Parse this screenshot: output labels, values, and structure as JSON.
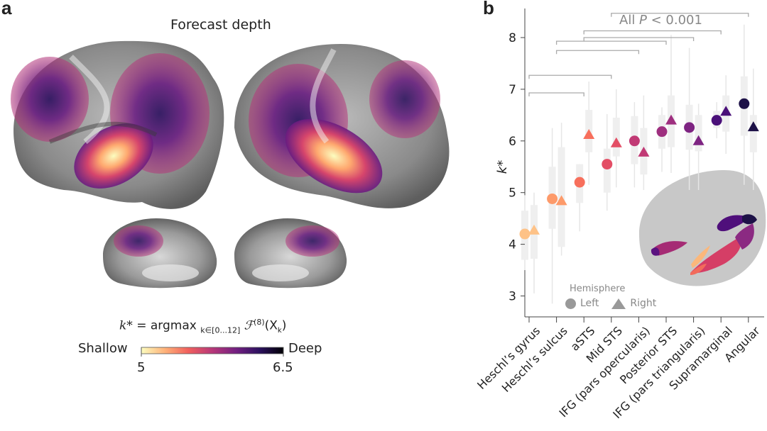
{
  "panel_a": {
    "label": "a",
    "title": "Forecast depth",
    "formula": {
      "lhs": "k*",
      "eq": " = argmax ",
      "subscript": "k∈[0...12]",
      "func": "ℱ",
      "superscript": "(8)",
      "arg": "(X",
      "arg_sub": "k",
      "close": ")"
    },
    "colorbar": {
      "left_label": "Shallow",
      "right_label": "Deep",
      "min_tick": "5",
      "max_tick": "6.5",
      "colormap": [
        "#fcfdbf",
        "#feb078",
        "#f1605d",
        "#b73779",
        "#721f81",
        "#2c115f",
        "#000004"
      ]
    },
    "views": [
      "left-lateral",
      "right-lateral",
      "left-medial",
      "right-medial"
    ]
  },
  "chart_data": {
    "type": "scatter",
    "panel_label": "b",
    "title": "",
    "xlabel": "",
    "ylabel": "k*",
    "ylim": [
      2.6,
      8.5
    ],
    "yticks": [
      3,
      4,
      5,
      6,
      7,
      8
    ],
    "categories": [
      "Heschl’s gyrus",
      "Heschl’s sulcus",
      "aSTS",
      "Mid STS",
      "IFG (pars opercularis)",
      "Posterior STS",
      "IFG (pars triangularis)",
      "Supramarginal",
      "Angular"
    ],
    "colors": [
      "#fec287",
      "#fd9a6a",
      "#f76f5c",
      "#e34e65",
      "#c13a75",
      "#9e2f7f",
      "#7e2482",
      "#4a1079",
      "#1d1147"
    ],
    "series": [
      {
        "name": "Left",
        "marker": "circle",
        "values": [
          4.2,
          4.88,
          5.2,
          5.55,
          6.0,
          6.18,
          6.26,
          6.4,
          6.72
        ],
        "box": [
          {
            "q1": 3.7,
            "q3": 4.65,
            "lo": 3.5,
            "hi": 4.95
          },
          {
            "q1": 4.3,
            "q3": 5.5,
            "lo": 2.85,
            "hi": 6.25
          },
          {
            "q1": 4.8,
            "q3": 5.55,
            "lo": 4.25,
            "hi": 5.55
          },
          {
            "q1": 5.0,
            "q3": 5.85,
            "lo": 4.65,
            "hi": 6.52
          },
          {
            "q1": 5.55,
            "q3": 6.48,
            "lo": 5.1,
            "hi": 6.75
          },
          {
            "q1": 5.85,
            "q3": 6.5,
            "lo": 5.4,
            "hi": 6.65
          },
          {
            "q1": 5.83,
            "q3": 6.7,
            "lo": 5.05,
            "hi": 7.8
          },
          {
            "q1": 6.25,
            "q3": 6.58,
            "lo": 6.05,
            "hi": 6.75
          },
          {
            "q1": 6.1,
            "q3": 7.25,
            "lo": 5.15,
            "hi": 8.25
          }
        ]
      },
      {
        "name": "Right",
        "marker": "triangle",
        "values": [
          4.27,
          4.84,
          6.12,
          5.96,
          5.78,
          6.4,
          6.0,
          6.57,
          6.27
        ],
        "box": [
          {
            "q1": 3.72,
            "q3": 4.76,
            "lo": 3.05,
            "hi": 5.0
          },
          {
            "q1": 3.95,
            "q3": 5.88,
            "lo": 3.78,
            "hi": 6.35
          },
          {
            "q1": 5.78,
            "q3": 6.6,
            "lo": 5.15,
            "hi": 7.15
          },
          {
            "q1": 5.7,
            "q3": 6.45,
            "lo": 5.1,
            "hi": 7.0
          },
          {
            "q1": 5.35,
            "q3": 6.25,
            "lo": 5.05,
            "hi": 6.88
          },
          {
            "q1": 5.88,
            "q3": 6.88,
            "lo": 5.38,
            "hi": 8.05
          },
          {
            "q1": 5.8,
            "q3": 6.5,
            "lo": 5.05,
            "hi": 6.72
          },
          {
            "q1": 6.18,
            "q3": 6.88,
            "lo": 5.75,
            "hi": 7.27
          },
          {
            "q1": 5.78,
            "q3": 6.5,
            "lo": 5.05,
            "hi": 7.4
          }
        ]
      }
    ],
    "significance": {
      "label_prefix": "All ",
      "label_italic": "P",
      "label_suffix": " < 0.001",
      "brackets": [
        {
          "from": 0,
          "to": 2,
          "level": 6.93
        },
        {
          "from": 0,
          "to": 3,
          "level": 7.27
        },
        {
          "from": 1,
          "to": 4,
          "level": 7.75
        },
        {
          "from": 1,
          "to": 5,
          "level": 7.93
        },
        {
          "from": 2,
          "to": 6,
          "level": 8.0
        },
        {
          "from": 2,
          "to": 7,
          "level": 8.13
        },
        {
          "from": 3,
          "to": 8,
          "level": 8.47
        }
      ]
    },
    "legend": {
      "title": "Hemisphere",
      "items": [
        {
          "label": "Left",
          "marker": "circle"
        },
        {
          "label": "Right",
          "marker": "triangle"
        }
      ],
      "position": "bottom-left"
    },
    "inset": "brain ROI map"
  }
}
